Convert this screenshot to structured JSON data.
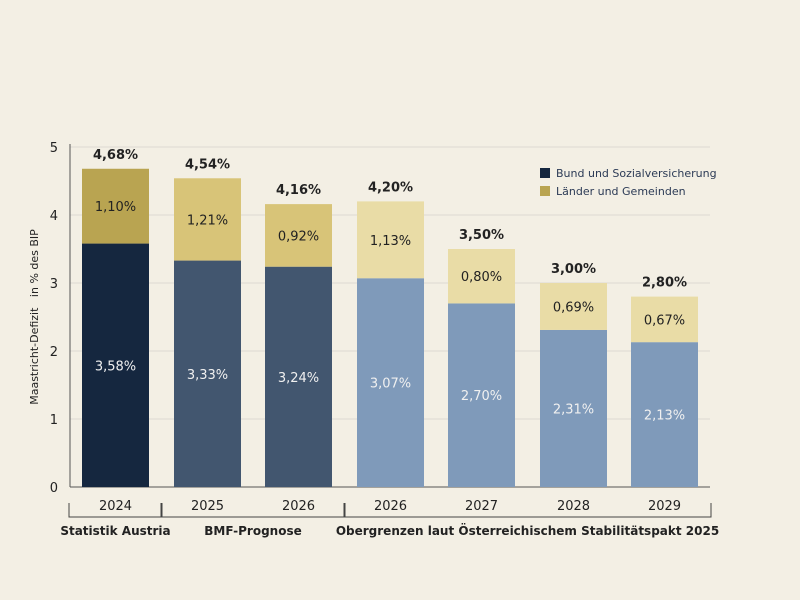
{
  "chart_data": {
    "type": "bar",
    "stacked": true,
    "ylabel": "Maastricht-Defizit   in % des BIP",
    "ylim": [
      0,
      5
    ],
    "yticks": [
      "0",
      "1",
      "2",
      "3",
      "4",
      "5"
    ],
    "grid": true,
    "legend_position": "top-right",
    "categories": [
      "2024",
      "2025",
      "2026",
      "2026",
      "2027",
      "2028",
      "2029"
    ],
    "series": [
      {
        "name": "Bund und Sozialversicherung",
        "values": [
          3.58,
          3.33,
          3.24,
          3.07,
          2.7,
          2.31,
          2.13
        ],
        "labels": [
          "3,58%",
          "3,33%",
          "3,24%",
          "3,07%",
          "2,70%",
          "2,31%",
          "2,13%"
        ],
        "color": "#15273f"
      },
      {
        "name": "Länder und Gemeinden",
        "values": [
          1.1,
          1.21,
          0.92,
          1.13,
          0.8,
          0.69,
          0.67
        ],
        "labels": [
          "1,10%",
          "1,21%",
          "0,92%",
          "1,13%",
          "0,80%",
          "0,69%",
          "0,67%"
        ],
        "color": "#b9a451"
      }
    ],
    "totals": [
      "4,68%",
      "4,54%",
      "4,16%",
      "4,20%",
      "3,50%",
      "3,00%",
      "2,80%"
    ],
    "bar_colors": {
      "bottom": [
        "#15273f",
        "#42566f",
        "#42566f",
        "#7f9aba",
        "#7f9aba",
        "#7f9aba",
        "#7f9aba"
      ],
      "top": [
        "#b9a451",
        "#d8c478",
        "#d8c478",
        "#e9dca6",
        "#e9dca6",
        "#e9dca6",
        "#e9dca6"
      ]
    },
    "groups": [
      {
        "label": "Statistik Austria",
        "from": 0,
        "to": 0
      },
      {
        "label": "BMF-Prognose",
        "from": 1,
        "to": 2
      },
      {
        "label": "Obergrenzen laut Österreichischem Stabilitätspakt 2025",
        "from": 3,
        "to": 6
      }
    ]
  }
}
